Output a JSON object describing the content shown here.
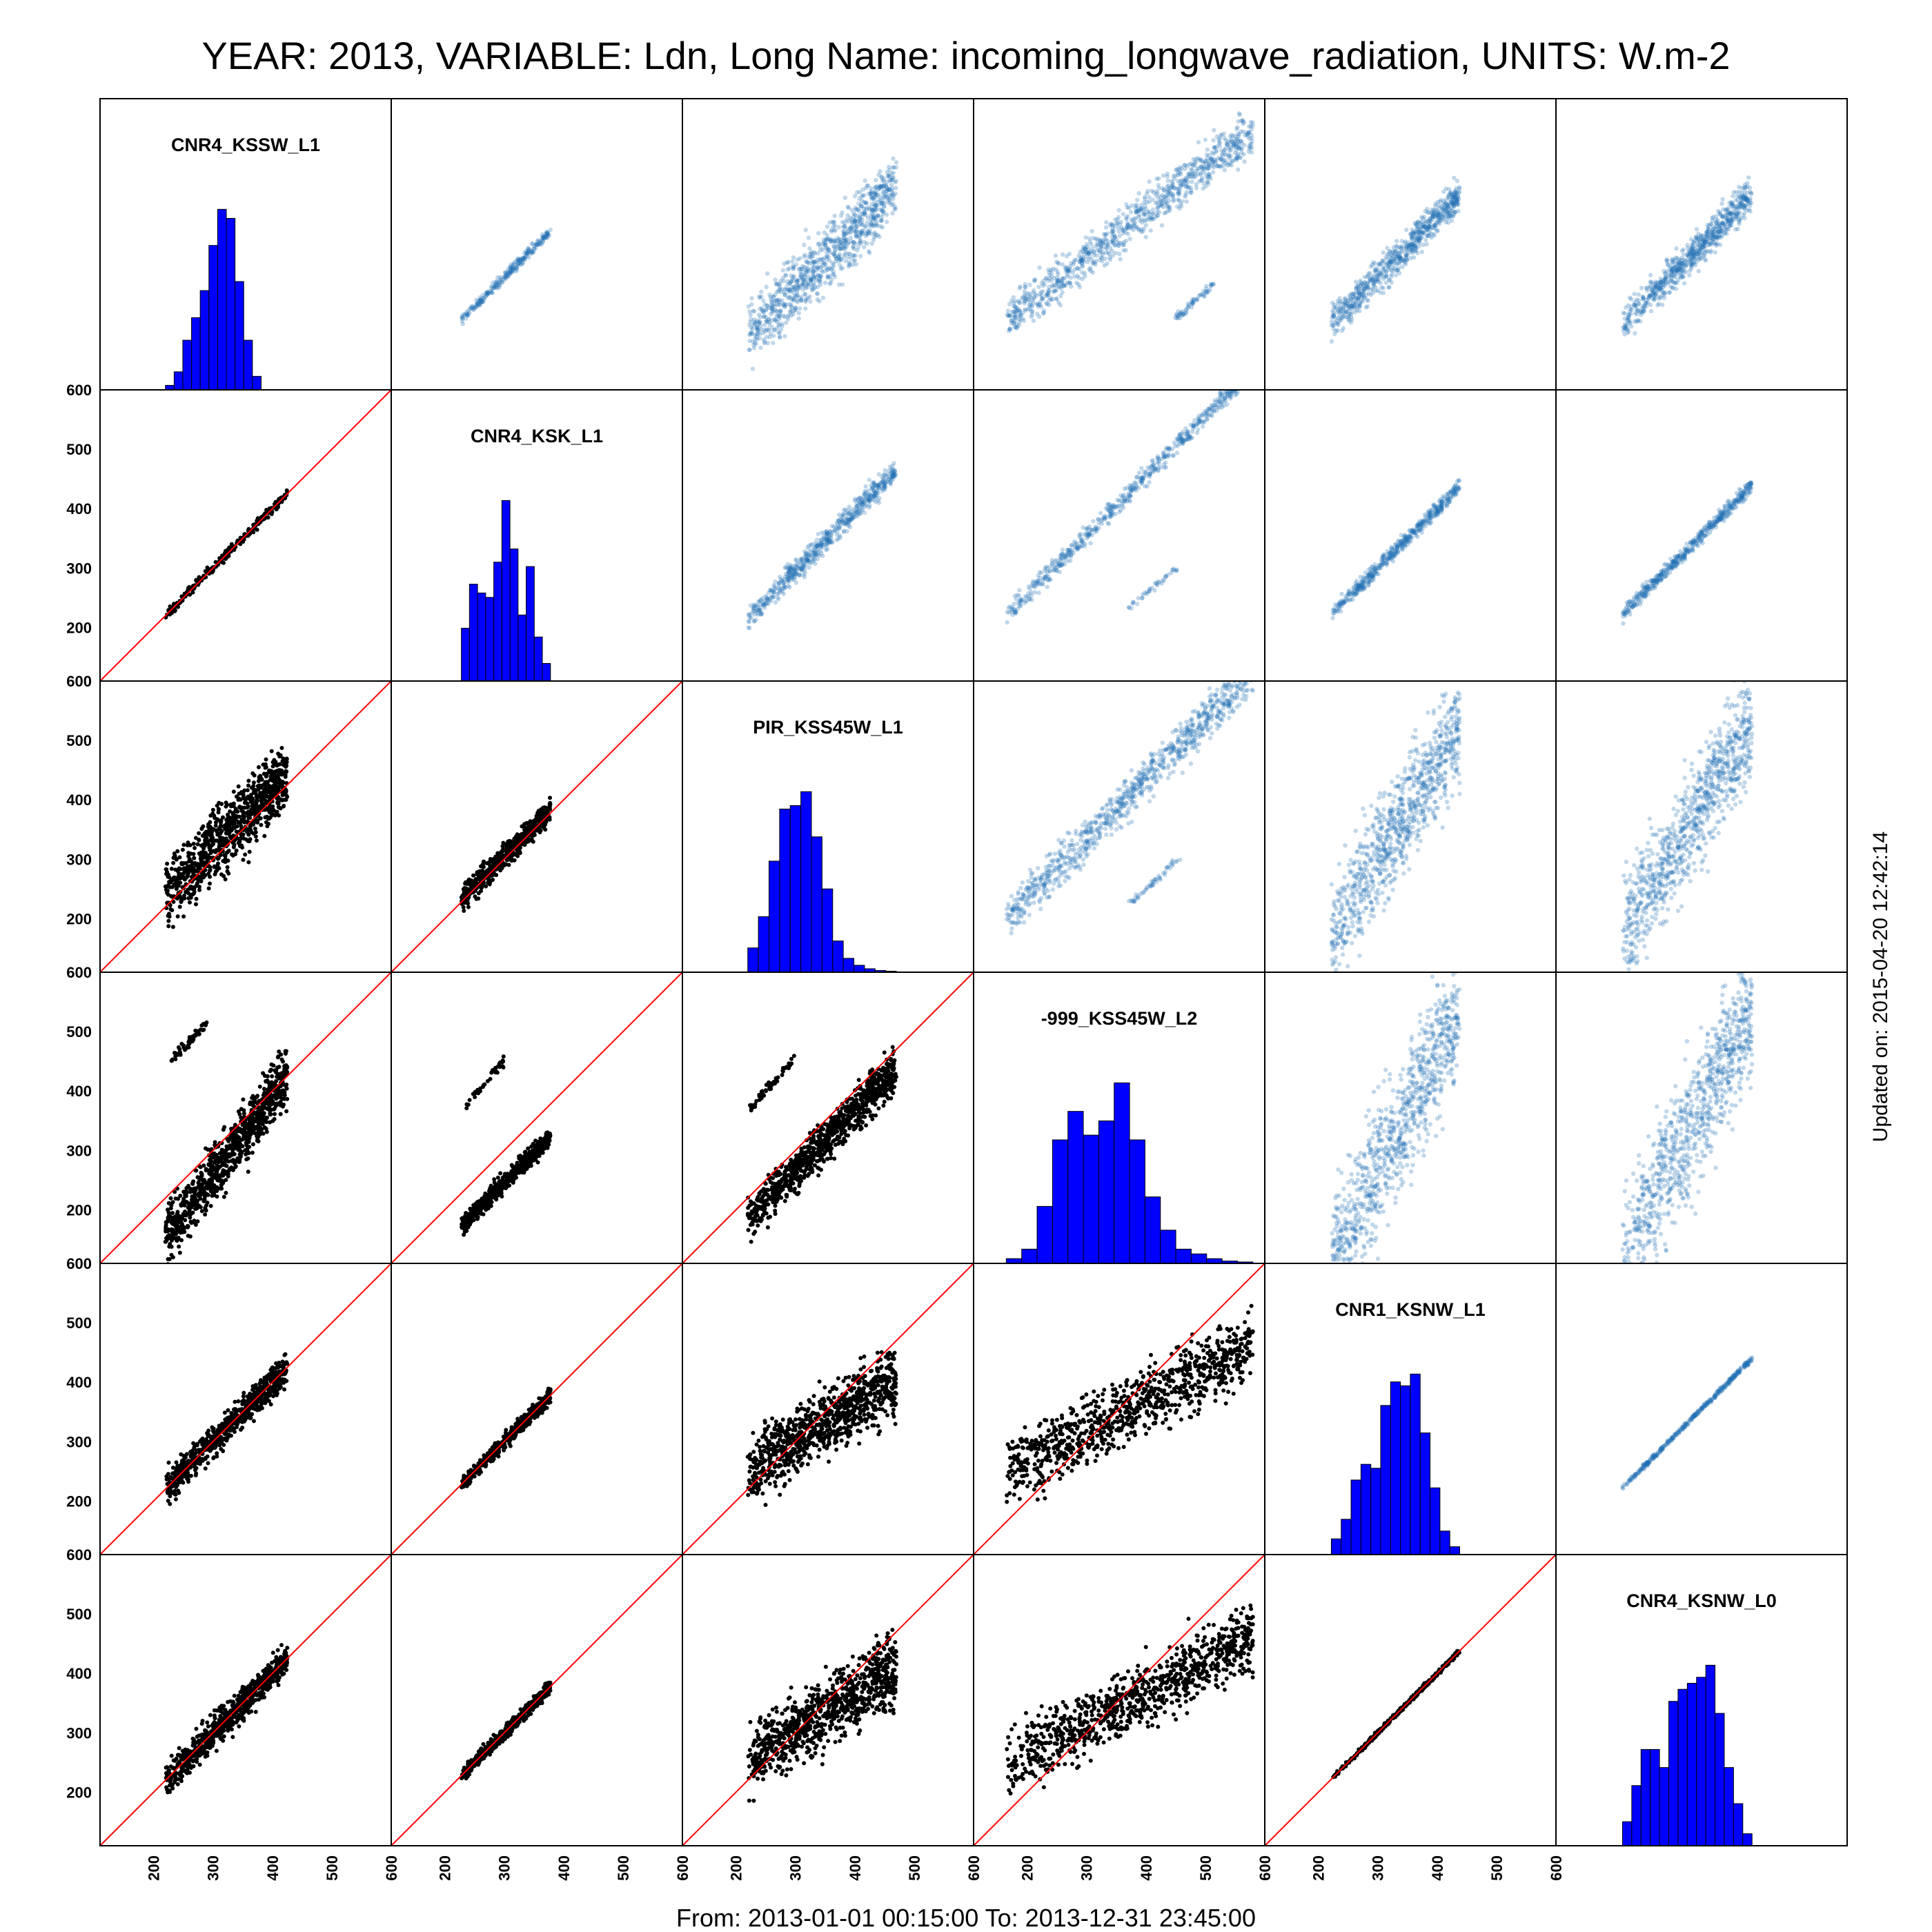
{
  "header": {
    "title": "YEAR: 2013, VARIABLE: Ldn, Long Name: incoming_longwave_radiation, UNITS: W.m-2"
  },
  "footer": {
    "range": "From: 2013-01-01 00:15:00 To: 2013-12-31 23:45:00"
  },
  "side": {
    "updated": "Updated on: 2015-04-20 12:42:14"
  },
  "colors": {
    "histogram": "#0000ff",
    "scatter_lower": "#000000",
    "scatter_upper": "#2171b5",
    "identity_line": "#ff0000"
  },
  "chart_data": {
    "type": "scatter",
    "matrix": "pairs",
    "variables": [
      "CNR4_KSSW_L1",
      "CNR4_KSK_L1",
      "PIR_KSS45W_L1",
      "-999_KSS45W_L2",
      "CNR1_KSNW_L1",
      "CNR4_KSNW_L0"
    ],
    "x_ticks": [
      200,
      300,
      400,
      500,
      600
    ],
    "y_ticks": [
      200,
      300,
      400,
      500,
      600
    ],
    "axis_range": [
      110,
      600
    ],
    "identity_line": true,
    "grid": false,
    "ranges": [
      [
        220,
        425
      ],
      [
        228,
        378
      ],
      [
        220,
        470
      ],
      [
        165,
        580
      ],
      [
        222,
        438
      ],
      [
        222,
        440
      ]
    ],
    "histograms": [
      [
        1,
        4,
        11,
        16,
        22,
        32,
        40,
        38,
        24,
        11,
        3,
        0,
        0,
        0
      ],
      [
        12,
        22,
        20,
        19,
        27,
        41,
        30,
        15,
        26,
        10,
        4
      ],
      [
        7,
        16,
        32,
        47,
        48,
        52,
        39,
        24,
        9,
        4,
        2,
        1,
        0.5,
        0.3
      ],
      [
        1,
        3,
        12,
        26,
        32,
        27,
        30,
        38,
        26,
        14,
        7,
        3,
        2,
        1,
        0.5,
        0.3
      ],
      [
        4,
        9,
        19,
        23,
        22,
        38,
        44,
        43,
        46,
        31,
        17,
        6,
        2
      ],
      [
        4,
        10,
        16,
        16,
        13,
        24,
        26,
        27,
        28,
        30,
        22,
        13,
        7,
        2
      ]
    ],
    "pairs": [
      {
        "a": 0,
        "b": 1,
        "slope": 1.0,
        "intercept": 0,
        "spread": 4,
        "n": 260
      },
      {
        "a": 0,
        "b": 2,
        "slope": 1.0,
        "intercept": 20,
        "spread": 28,
        "n": 900
      },
      {
        "a": 0,
        "b": 3,
        "slope": 1.3,
        "intercept": -130,
        "spread": 24,
        "n": 900,
        "outlier": {
          "x": [
            230,
            290
          ],
          "slope": 1.05,
          "intercept": 210,
          "n": 60
        }
      },
      {
        "a": 0,
        "b": 4,
        "slope": 1.0,
        "intercept": 0,
        "spread": 14,
        "n": 700
      },
      {
        "a": 0,
        "b": 5,
        "slope": 1.0,
        "intercept": 0,
        "spread": 14,
        "n": 700
      },
      {
        "a": 1,
        "b": 2,
        "slope": 1.0,
        "intercept": 5,
        "spread": 10,
        "n": 600
      },
      {
        "a": 1,
        "b": 3,
        "slope": 1.0,
        "intercept": -55,
        "spread": 8,
        "n": 600,
        "outlier": {
          "x": [
            232,
            300
          ],
          "slope": 1.15,
          "intercept": 105,
          "n": 40
        }
      },
      {
        "a": 1,
        "b": 4,
        "slope": 1.0,
        "intercept": 0,
        "spread": 6,
        "n": 500
      },
      {
        "a": 1,
        "b": 5,
        "slope": 1.0,
        "intercept": 0,
        "spread": 6,
        "n": 500
      },
      {
        "a": 2,
        "b": 3,
        "slope": 1.0,
        "intercept": -35,
        "spread": 18,
        "n": 900,
        "outlier": {
          "x": [
            222,
            300
          ],
          "slope": 1.1,
          "intercept": 125,
          "n": 50
        }
      },
      {
        "a": 2,
        "b": 4,
        "slope": 0.62,
        "intercept": 115,
        "spread": 28,
        "n": 900
      },
      {
        "a": 2,
        "b": 5,
        "slope": 0.62,
        "intercept": 115,
        "spread": 28,
        "n": 900
      },
      {
        "a": 3,
        "b": 4,
        "slope": 0.52,
        "intercept": 160,
        "spread": 28,
        "n": 900
      },
      {
        "a": 3,
        "b": 5,
        "slope": 0.52,
        "intercept": 160,
        "spread": 28,
        "n": 900
      },
      {
        "a": 4,
        "b": 5,
        "slope": 1.0,
        "intercept": 0,
        "spread": 2,
        "n": 400
      }
    ]
  }
}
